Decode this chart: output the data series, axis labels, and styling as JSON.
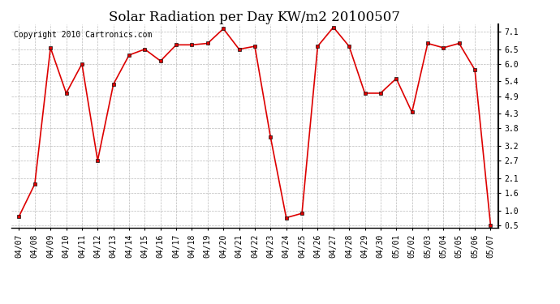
{
  "title": "Solar Radiation per Day KW/m2 20100507",
  "copyright": "Copyright 2010 Cartronics.com",
  "dates": [
    "04/07",
    "04/08",
    "04/09",
    "04/10",
    "04/11",
    "04/12",
    "04/13",
    "04/14",
    "04/15",
    "04/16",
    "04/17",
    "04/18",
    "04/19",
    "04/20",
    "04/21",
    "04/22",
    "04/23",
    "04/24",
    "04/25",
    "04/26",
    "04/27",
    "04/28",
    "04/29",
    "04/30",
    "05/01",
    "05/02",
    "05/03",
    "05/04",
    "05/05",
    "05/06",
    "05/07"
  ],
  "values": [
    0.8,
    1.9,
    6.55,
    5.0,
    6.0,
    2.7,
    5.3,
    6.3,
    6.5,
    6.1,
    6.65,
    6.65,
    6.7,
    7.2,
    6.5,
    6.6,
    3.5,
    0.75,
    0.9,
    6.6,
    7.25,
    6.6,
    5.0,
    5.0,
    5.5,
    4.35,
    6.7,
    6.55,
    6.7,
    5.8,
    0.5
  ],
  "line_color": "#dd0000",
  "marker": "s",
  "marker_size": 3,
  "bg_color": "#ffffff",
  "grid_color": "#aaaaaa",
  "ylim": [
    0.4,
    7.35
  ],
  "yticks": [
    0.5,
    1.0,
    1.6,
    2.1,
    2.7,
    3.2,
    3.8,
    4.3,
    4.9,
    5.4,
    6.0,
    6.5,
    7.1
  ],
  "title_fontsize": 12,
  "copyright_fontsize": 7,
  "tick_fontsize": 7,
  "ytick_fontsize": 7
}
